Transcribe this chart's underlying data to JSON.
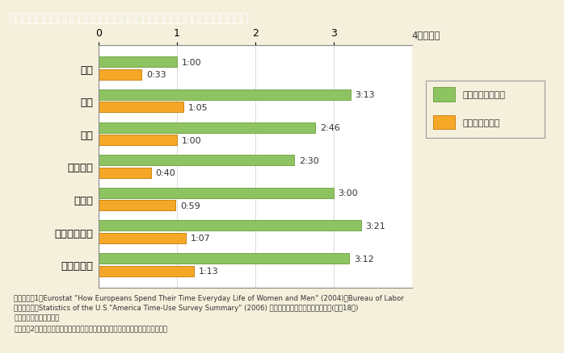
{
  "title": "第１－４－６図　６歳未満児のいる夫の家事・育児関連時間（１日当たり）",
  "title_bg_color": "#7B6142",
  "title_text_color": "#FFFFFF",
  "bg_color": "#F5F0DC",
  "plot_bg_color": "#FFFFFF",
  "categories": [
    "日本",
    "米国",
    "英国",
    "フランス",
    "ドイツ",
    "スウェーデン",
    "ノルウェー"
  ],
  "green_values": [
    1.0,
    3.2167,
    2.7667,
    2.5,
    3.0,
    3.35,
    3.2
  ],
  "orange_values": [
    0.55,
    1.0833,
    1.0,
    0.6667,
    0.9833,
    1.1167,
    1.2167
  ],
  "green_labels": [
    "1:00",
    "3:13",
    "2:46",
    "2:30",
    "3:00",
    "3:21",
    "3:12"
  ],
  "orange_labels": [
    "0:33",
    "1:05",
    "1:00",
    "0:40",
    "0:59",
    "1:07",
    "1:13"
  ],
  "green_color": "#8DC461",
  "green_edge_color": "#6A9E3A",
  "orange_color": "#F5A828",
  "orange_edge_color": "#C47800",
  "xlim": [
    0,
    4
  ],
  "xticks": [
    0,
    1,
    2,
    3
  ],
  "xlabel_unit": "4（時間）",
  "legend_labels": [
    "家事関連時間全体",
    "うち育児の時間"
  ],
  "note_line1": "（備考）　1．Eurostat \"How Europeans Spend Their Time Everyday Life of Women and Men\" (2004)，Bureau of Labor",
  "note_line2": "　　　　　　Statistics of the U.S.\"America Time-Use Survey Summary\" (2006) 及び総務省「社会生活基本調査」(平成18年)",
  "note_line3": "　　　　　　より作成。",
  "note_line4": "　　　　2．日本の数値は，「夫婦と子どもの世帯」に限定した夫の時間である。"
}
